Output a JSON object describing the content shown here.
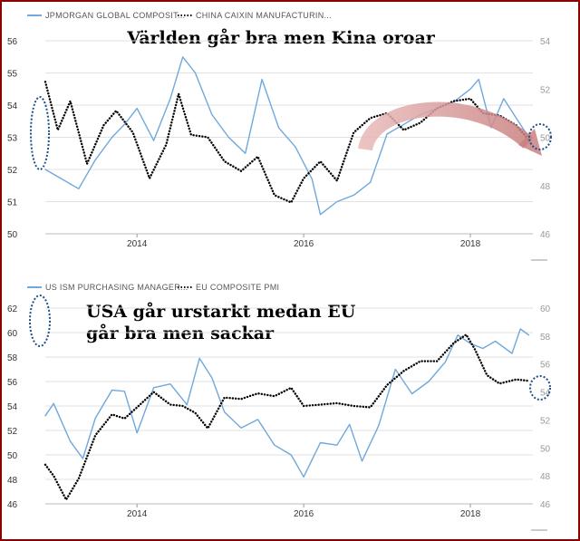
{
  "chart_data": [
    {
      "type": "line",
      "title": "Världen går bra men Kina oroar",
      "x_range": [
        2012.9,
        2018.75
      ],
      "x_ticks": [
        "2014",
        "2016",
        "2018"
      ],
      "y_left": {
        "ylim": [
          50,
          56
        ],
        "ticks": [
          "50",
          "51",
          "52",
          "53",
          "54",
          "55",
          "56"
        ]
      },
      "y_right": {
        "ylim": [
          46,
          54
        ],
        "ticks": [
          "46",
          "48",
          "50",
          "52",
          "54"
        ]
      },
      "series": [
        {
          "name": "JPMORGAN GLOBAL COMPOSIT...",
          "axis": "left",
          "color": "#6fa8dc",
          "style": "solid",
          "x": [
            2012.9,
            2013.1,
            2013.3,
            2013.5,
            2013.7,
            2013.85,
            2014.0,
            2014.2,
            2014.4,
            2014.55,
            2014.7,
            2014.9,
            2015.1,
            2015.3,
            2015.5,
            2015.7,
            2015.9,
            2016.1,
            2016.2,
            2016.4,
            2016.6,
            2016.8,
            2017.0,
            2017.2,
            2017.4,
            2017.6,
            2017.8,
            2018.0,
            2018.1,
            2018.25,
            2018.4,
            2018.55,
            2018.7
          ],
          "y": [
            52.0,
            51.7,
            51.4,
            52.3,
            53.0,
            53.4,
            53.9,
            52.9,
            54.2,
            55.5,
            55.0,
            53.7,
            53.0,
            52.5,
            54.8,
            53.3,
            52.7,
            51.7,
            50.6,
            51.0,
            51.2,
            51.6,
            53.1,
            53.4,
            53.7,
            53.9,
            54.1,
            54.5,
            54.8,
            53.3,
            54.2,
            53.6,
            53.0
          ]
        },
        {
          "name": "CHINA CAIXIN MANUFACTURIN...",
          "axis": "right",
          "color": "#000000",
          "style": "dotted",
          "x": [
            2012.9,
            2013.05,
            2013.2,
            2013.4,
            2013.6,
            2013.75,
            2013.95,
            2014.15,
            2014.35,
            2014.5,
            2014.65,
            2014.85,
            2015.05,
            2015.25,
            2015.45,
            2015.65,
            2015.85,
            2016.0,
            2016.2,
            2016.4,
            2016.6,
            2016.8,
            2017.0,
            2017.2,
            2017.4,
            2017.6,
            2017.8,
            2018.0,
            2018.15,
            2018.35,
            2018.55,
            2018.7
          ],
          "y": [
            52.3,
            50.3,
            51.5,
            48.9,
            50.5,
            51.1,
            50.2,
            48.3,
            49.7,
            51.8,
            50.1,
            50.0,
            49.0,
            48.6,
            49.2,
            47.6,
            47.3,
            48.3,
            49.0,
            48.2,
            50.2,
            50.8,
            51.0,
            50.3,
            50.6,
            51.2,
            51.5,
            51.6,
            51.0,
            50.9,
            50.5,
            49.9
          ]
        }
      ]
    },
    {
      "type": "line",
      "title": "USA går urstarkt medan EU går bra men sackar",
      "x_range": [
        2012.9,
        2018.75
      ],
      "x_ticks": [
        "2014",
        "2016",
        "2018"
      ],
      "y_left": {
        "ylim": [
          46,
          62
        ],
        "ticks": [
          "46",
          "48",
          "50",
          "52",
          "54",
          "56",
          "58",
          "60",
          "62"
        ]
      },
      "y_right": {
        "ylim": [
          46,
          60
        ],
        "ticks": [
          "46",
          "48",
          "50",
          "52",
          "54",
          "56",
          "58",
          "60"
        ]
      },
      "series": [
        {
          "name": "US ISM PURCHASING MANAGER...",
          "axis": "left",
          "color": "#6fa8dc",
          "style": "solid",
          "x": [
            2012.9,
            2013.0,
            2013.2,
            2013.35,
            2013.5,
            2013.7,
            2013.85,
            2014.0,
            2014.2,
            2014.4,
            2014.6,
            2014.75,
            2014.9,
            2015.05,
            2015.25,
            2015.45,
            2015.65,
            2015.85,
            2016.0,
            2016.2,
            2016.4,
            2016.55,
            2016.7,
            2016.9,
            2017.1,
            2017.3,
            2017.5,
            2017.7,
            2017.85,
            2018.0,
            2018.15,
            2018.3,
            2018.5,
            2018.6,
            2018.7
          ],
          "y": [
            53.2,
            54.2,
            51.1,
            49.7,
            53.0,
            55.3,
            55.2,
            51.8,
            55.5,
            55.8,
            54.1,
            57.9,
            56.3,
            53.5,
            52.2,
            52.9,
            50.8,
            50.0,
            48.2,
            51.0,
            50.8,
            52.5,
            49.5,
            52.4,
            57.0,
            55.0,
            56.0,
            57.6,
            59.8,
            59.1,
            58.7,
            59.3,
            58.3,
            60.3,
            59.8
          ]
        },
        {
          "name": "EU COMPOSITE PMI",
          "axis": "right",
          "color": "#000000",
          "style": "dotted",
          "x": [
            2012.9,
            2013.0,
            2013.15,
            2013.3,
            2013.5,
            2013.7,
            2013.85,
            2014.0,
            2014.2,
            2014.4,
            2014.55,
            2014.7,
            2014.85,
            2015.05,
            2015.25,
            2015.45,
            2015.65,
            2015.85,
            2016.0,
            2016.2,
            2016.4,
            2016.6,
            2016.8,
            2017.0,
            2017.2,
            2017.4,
            2017.6,
            2017.8,
            2017.95,
            2018.05,
            2018.2,
            2018.35,
            2018.55,
            2018.7
          ],
          "y": [
            48.8,
            48.0,
            46.3,
            47.8,
            50.9,
            52.4,
            52.1,
            52.9,
            54.0,
            53.1,
            53.0,
            52.5,
            51.4,
            53.6,
            53.5,
            53.9,
            53.7,
            54.3,
            53.0,
            53.1,
            53.2,
            53.0,
            52.9,
            54.5,
            55.5,
            56.2,
            56.2,
            57.5,
            58.1,
            57.1,
            55.2,
            54.6,
            54.9,
            54.8
          ]
        }
      ]
    }
  ]
}
